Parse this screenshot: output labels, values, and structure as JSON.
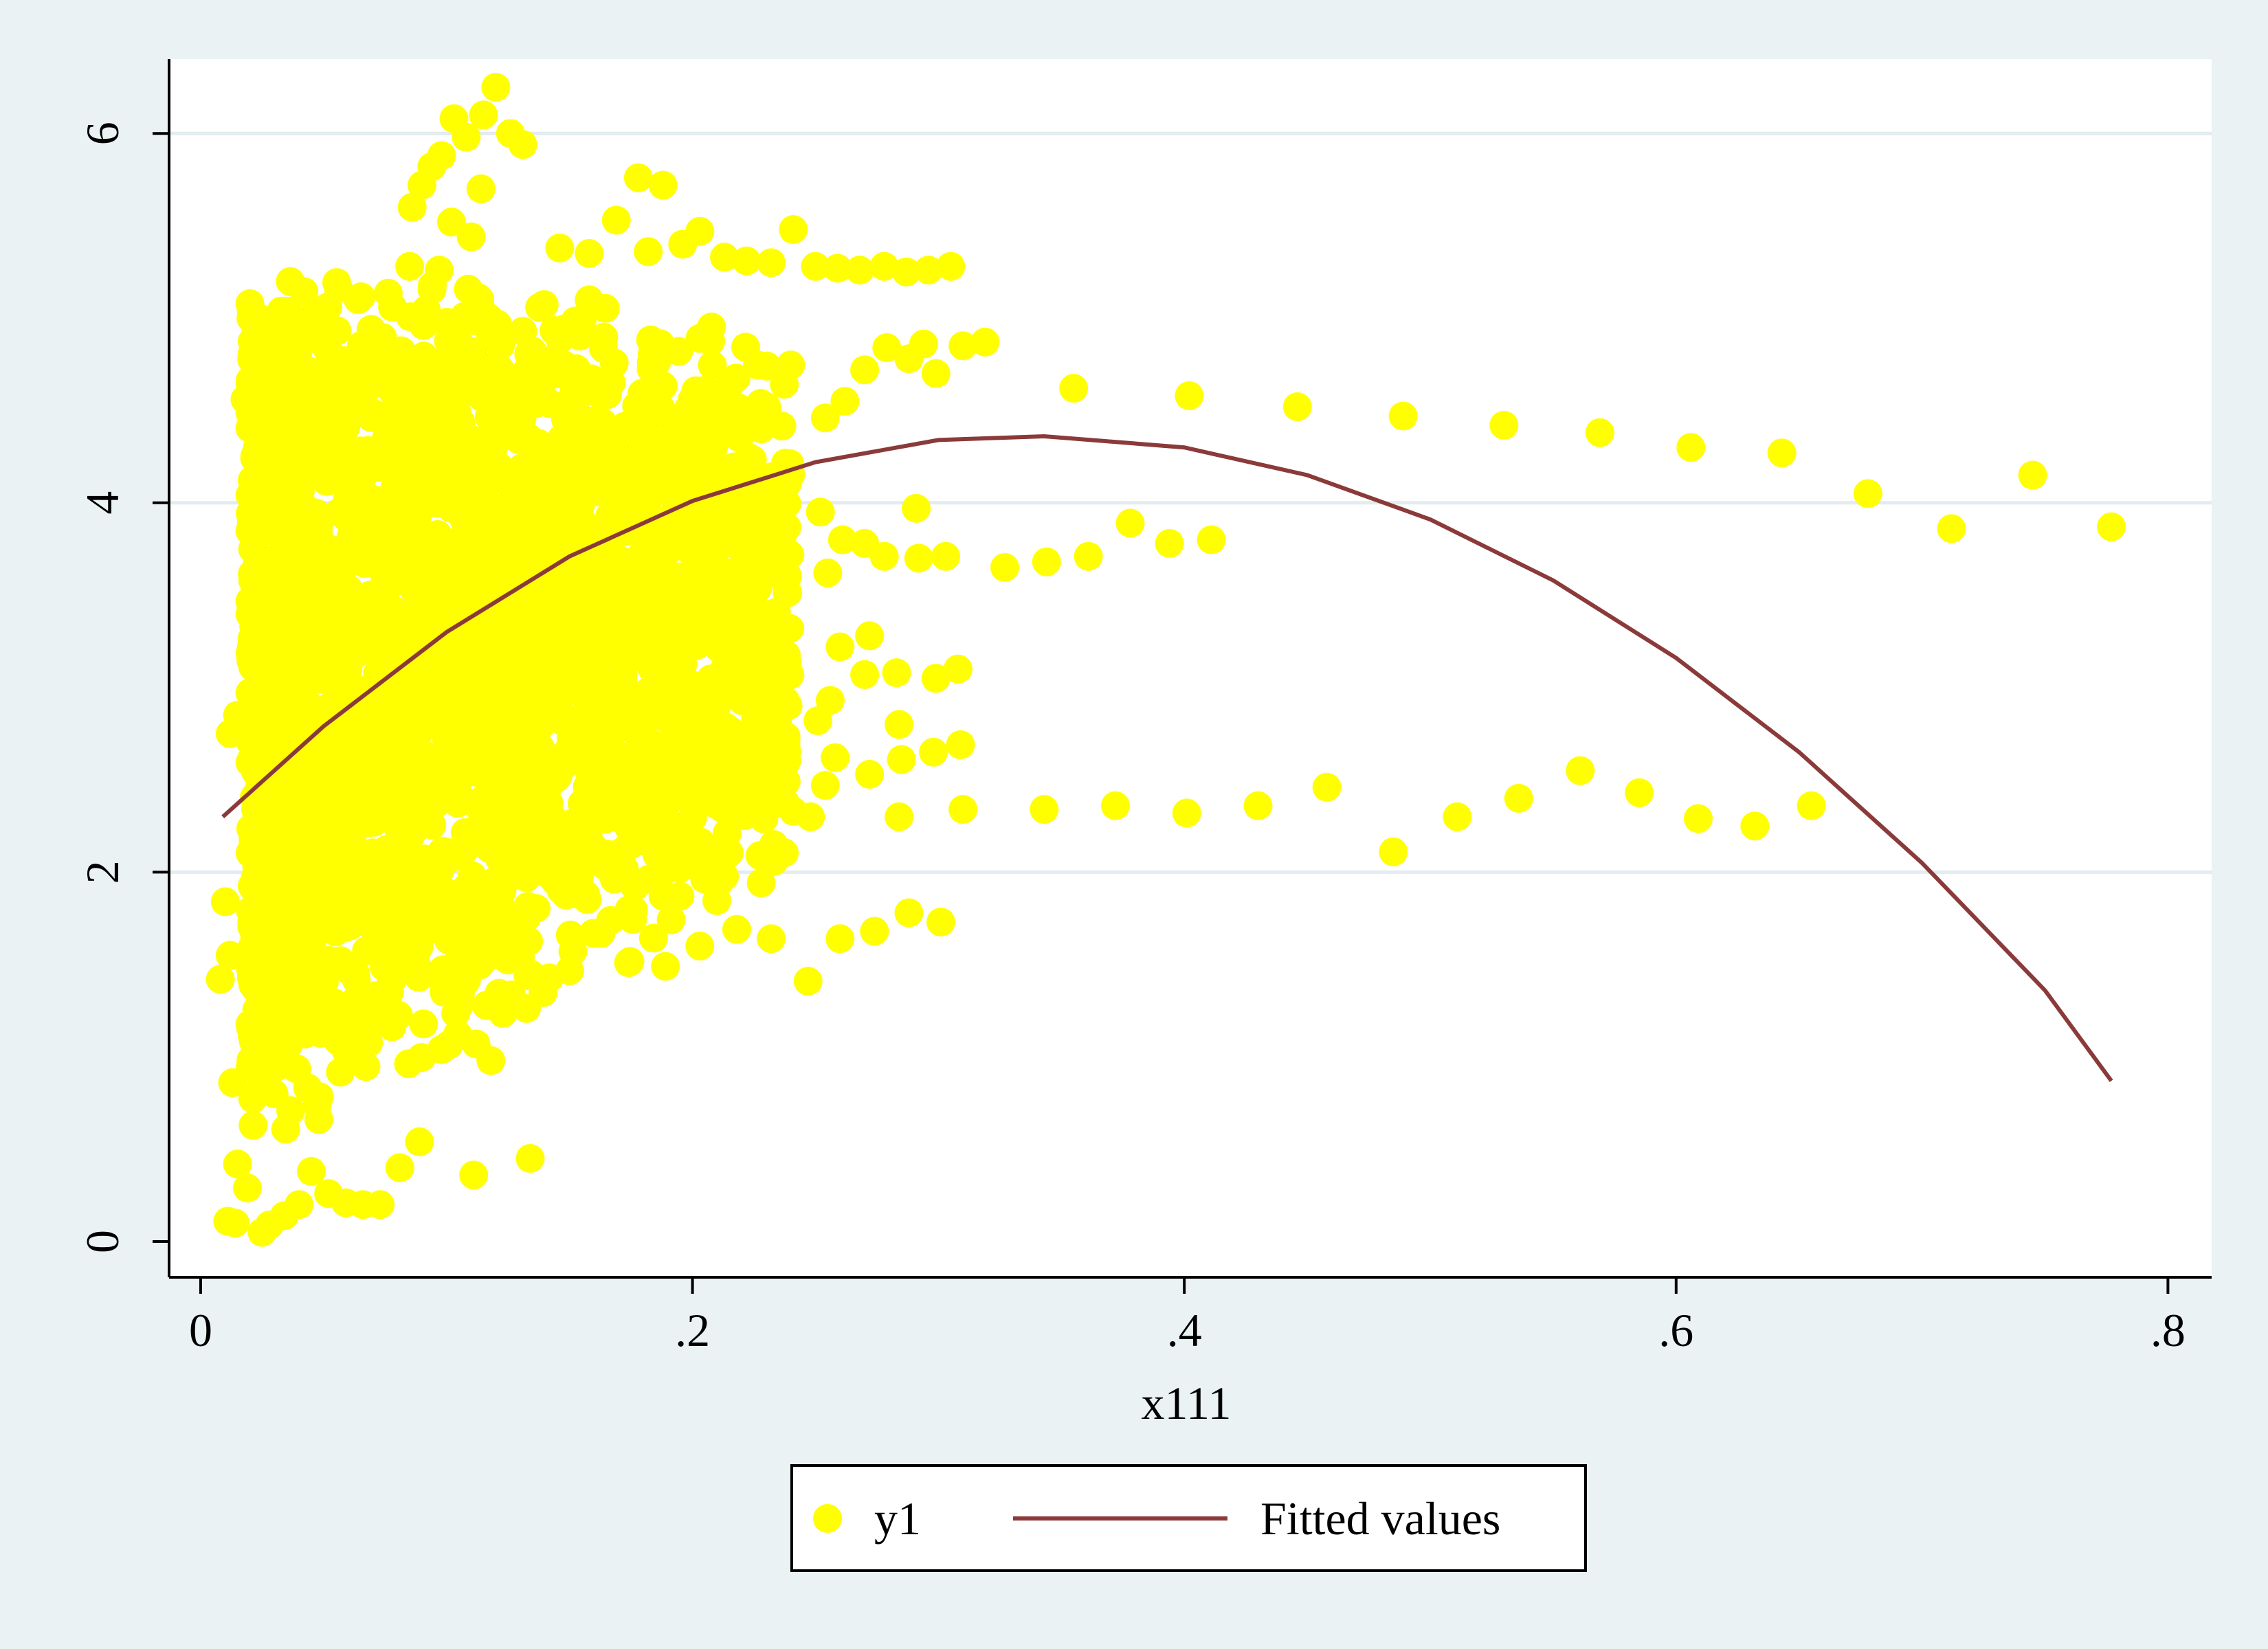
{
  "chart_data": {
    "type": "scatter",
    "xlabel": "x111",
    "ylabel": "",
    "xlim": [
      0,
      0.8
    ],
    "ylim": [
      0,
      6
    ],
    "x_ticks": [
      {
        "value": 0,
        "label": "0"
      },
      {
        "value": 0.2,
        "label": ".2"
      },
      {
        "value": 0.4,
        "label": ".4"
      },
      {
        "value": 0.6,
        "label": ".6"
      },
      {
        "value": 0.8,
        "label": ".8"
      }
    ],
    "y_ticks": [
      {
        "value": 0,
        "label": "0"
      },
      {
        "value": 2,
        "label": "2"
      },
      {
        "value": 4,
        "label": "4"
      },
      {
        "value": 6,
        "label": "6"
      }
    ],
    "grid": "horizontal",
    "legend_position": "bottom",
    "colors": {
      "page_bg": "#eaf2f3",
      "plot_bg": "#ffffff",
      "points": "#ffff00",
      "fit_line": "#8b3a3a",
      "grid": "#e3ecee",
      "axis": "#000000"
    },
    "series": [
      {
        "name": "y1",
        "kind": "scatter",
        "points": [
          [
            0.355,
            4.62
          ],
          [
            0.402,
            4.58
          ],
          [
            0.446,
            4.52
          ],
          [
            0.489,
            4.47
          ],
          [
            0.53,
            4.42
          ],
          [
            0.569,
            4.38
          ],
          [
            0.606,
            4.3
          ],
          [
            0.643,
            4.27
          ],
          [
            0.678,
            4.05
          ],
          [
            0.712,
            3.86
          ],
          [
            0.745,
            4.15
          ],
          [
            0.777,
            3.87
          ],
          [
            0.327,
            3.65
          ],
          [
            0.344,
            3.68
          ],
          [
            0.361,
            3.71
          ],
          [
            0.378,
            3.89
          ],
          [
            0.394,
            3.78
          ],
          [
            0.411,
            3.8
          ],
          [
            0.343,
            2.34
          ],
          [
            0.372,
            2.36
          ],
          [
            0.401,
            2.32
          ],
          [
            0.43,
            2.36
          ],
          [
            0.458,
            2.46
          ],
          [
            0.485,
            2.11
          ],
          [
            0.511,
            2.3
          ],
          [
            0.536,
            2.4
          ],
          [
            0.561,
            2.55
          ],
          [
            0.585,
            2.43
          ],
          [
            0.609,
            2.29
          ],
          [
            0.632,
            2.25
          ],
          [
            0.655,
            2.36
          ],
          [
            0.305,
            5.28
          ],
          [
            0.296,
            5.26
          ],
          [
            0.287,
            5.25
          ],
          [
            0.278,
            5.28
          ],
          [
            0.268,
            5.26
          ],
          [
            0.259,
            5.27
          ],
          [
            0.25,
            5.28
          ],
          [
            0.241,
            5.48
          ],
          [
            0.232,
            5.3
          ],
          [
            0.222,
            5.31
          ],
          [
            0.213,
            5.33
          ],
          [
            0.203,
            5.47
          ],
          [
            0.319,
            4.87
          ],
          [
            0.31,
            4.85
          ],
          [
            0.299,
            4.7
          ],
          [
            0.294,
            4.86
          ],
          [
            0.288,
            4.78
          ],
          [
            0.279,
            4.84
          ],
          [
            0.27,
            4.72
          ],
          [
            0.262,
            4.55
          ],
          [
            0.254,
            4.46
          ],
          [
            0.291,
            3.97
          ],
          [
            0.303,
            3.71
          ],
          [
            0.292,
            3.7
          ],
          [
            0.278,
            3.71
          ],
          [
            0.27,
            3.78
          ],
          [
            0.261,
            3.8
          ],
          [
            0.252,
            3.95
          ],
          [
            0.255,
            3.62
          ],
          [
            0.308,
            3.1
          ],
          [
            0.299,
            3.05
          ],
          [
            0.283,
            3.08
          ],
          [
            0.27,
            3.07
          ],
          [
            0.272,
            3.28
          ],
          [
            0.26,
            3.22
          ],
          [
            0.256,
            2.93
          ],
          [
            0.251,
            2.82
          ],
          [
            0.309,
            2.69
          ],
          [
            0.298,
            2.65
          ],
          [
            0.284,
            2.8
          ],
          [
            0.285,
            2.61
          ],
          [
            0.272,
            2.53
          ],
          [
            0.258,
            2.62
          ],
          [
            0.254,
            2.47
          ],
          [
            0.31,
            2.34
          ],
          [
            0.284,
            2.3
          ],
          [
            0.301,
            1.73
          ],
          [
            0.288,
            1.78
          ],
          [
            0.274,
            1.68
          ],
          [
            0.26,
            1.64
          ],
          [
            0.247,
            1.41
          ],
          [
            0.232,
            1.64
          ],
          [
            0.218,
            1.69
          ],
          [
            0.203,
            1.6
          ],
          [
            0.189,
            1.49
          ],
          [
            0.174,
            1.51
          ],
          [
            0.248,
            2.3
          ],
          [
            0.241,
            2.33
          ],
          [
            0.233,
            2.15
          ],
          [
            0.225,
            2.33
          ],
          [
            0.218,
            2.5
          ],
          [
            0.211,
            1.95
          ],
          [
            0.199,
            2.05
          ],
          [
            0.188,
            1.87
          ],
          [
            0.134,
            0.45
          ],
          [
            0.111,
            0.36
          ],
          [
            0.118,
            0.98
          ],
          [
            0.112,
            1.07
          ],
          [
            0.099,
            1.35
          ],
          [
            0.098,
            1.04
          ],
          [
            0.089,
            0.54
          ],
          [
            0.081,
            0.4
          ],
          [
            0.073,
            0.2
          ],
          [
            0.066,
            0.2
          ],
          [
            0.059,
            0.21
          ],
          [
            0.052,
            0.26
          ],
          [
            0.045,
            0.38
          ],
          [
            0.04,
            0.2
          ],
          [
            0.034,
            0.14
          ],
          [
            0.028,
            0.09
          ],
          [
            0.025,
            0.05
          ],
          [
            0.019,
            0.29
          ],
          [
            0.015,
            0.42
          ],
          [
            0.014,
            0.1
          ],
          [
            0.011,
            0.11
          ],
          [
            0.013,
            0.86
          ],
          [
            0.008,
            1.42
          ],
          [
            0.012,
            1.55
          ],
          [
            0.01,
            1.84
          ],
          [
            0.012,
            2.75
          ],
          [
            0.015,
            2.85
          ],
          [
            0.018,
            4.56
          ],
          [
            0.024,
            4.48
          ],
          [
            0.033,
            4.4
          ],
          [
            0.042,
            4.62
          ],
          [
            0.12,
            6.25
          ],
          [
            0.126,
            6.0
          ],
          [
            0.131,
            5.94
          ],
          [
            0.115,
            6.1
          ],
          [
            0.108,
            5.98
          ],
          [
            0.103,
            6.08
          ],
          [
            0.098,
            5.88
          ],
          [
            0.094,
            5.82
          ],
          [
            0.09,
            5.72
          ],
          [
            0.086,
            5.6
          ],
          [
            0.114,
            5.7
          ],
          [
            0.11,
            5.44
          ],
          [
            0.102,
            5.52
          ],
          [
            0.097,
            5.26
          ],
          [
            0.085,
            5.28
          ],
          [
            0.078,
            5.06
          ],
          [
            0.064,
            5.1
          ],
          [
            0.056,
            5.16
          ],
          [
            0.178,
            5.76
          ],
          [
            0.188,
            5.72
          ],
          [
            0.169,
            5.53
          ],
          [
            0.146,
            5.38
          ],
          [
            0.158,
            5.35
          ],
          [
            0.182,
            5.36
          ],
          [
            0.196,
            5.4
          ]
        ]
      },
      {
        "name": "Fitted values",
        "kind": "line",
        "x": [
          0.009,
          0.05,
          0.1,
          0.15,
          0.2,
          0.25,
          0.3,
          0.343,
          0.4,
          0.45,
          0.5,
          0.55,
          0.6,
          0.65,
          0.7,
          0.75,
          0.777
        ],
        "y": [
          2.3,
          2.79,
          3.3,
          3.71,
          4.01,
          4.22,
          4.34,
          4.36,
          4.3,
          4.15,
          3.91,
          3.58,
          3.16,
          2.65,
          2.05,
          1.36,
          0.87
        ]
      }
    ]
  }
}
